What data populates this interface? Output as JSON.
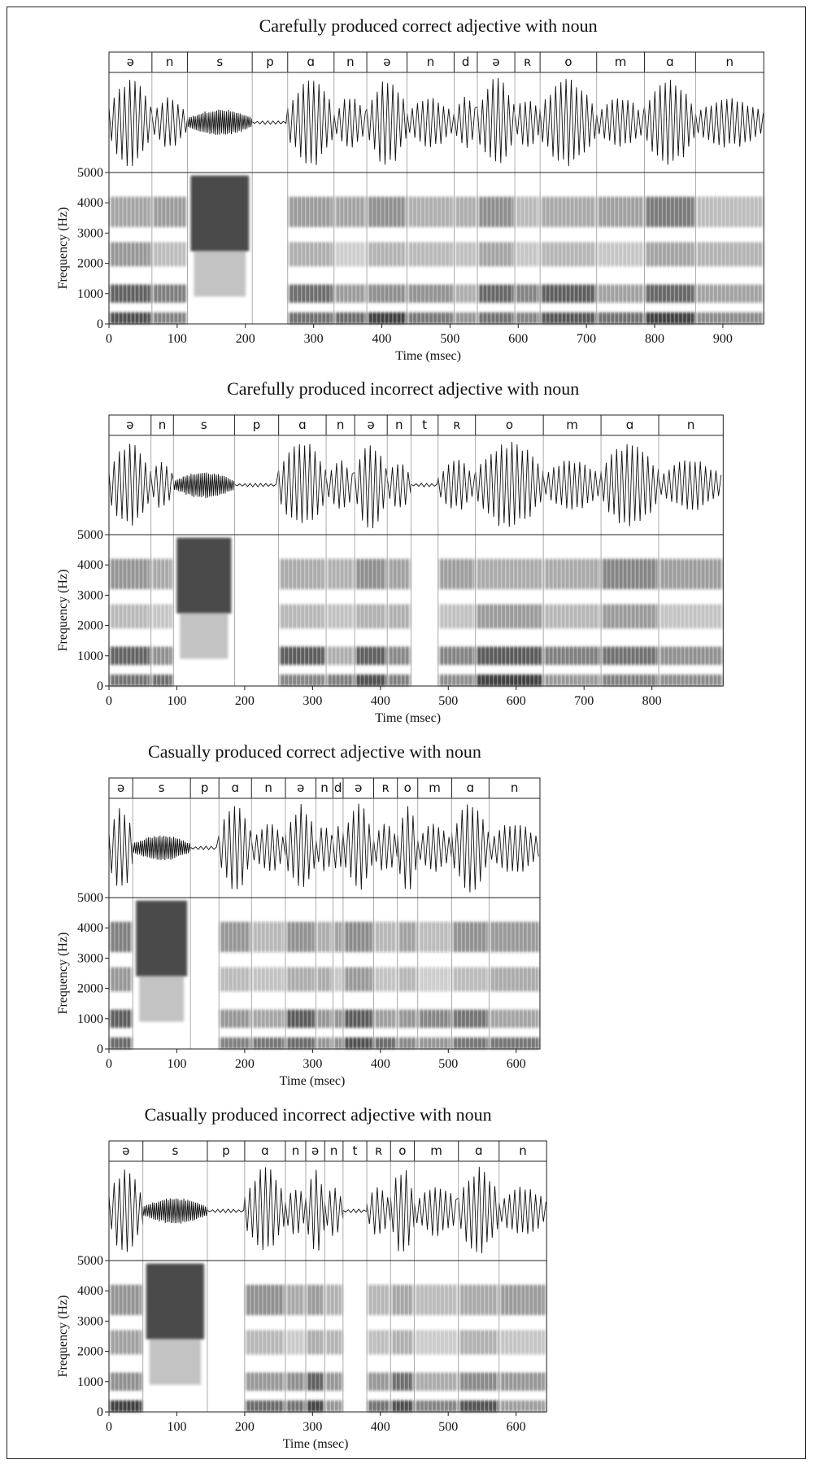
{
  "panels": [
    {
      "title": "Carefully produced correct adjective with noun",
      "xlabel": "Time (msec)",
      "ylabel": "Frequency (Hz)",
      "duration_ms": 960,
      "x_ticks": [
        0,
        100,
        200,
        300,
        400,
        500,
        600,
        700,
        800,
        900
      ],
      "y_ticks": [
        0,
        1000,
        2000,
        3000,
        4000,
        5000
      ],
      "ylim": [
        0,
        5000
      ],
      "segments": [
        {
          "label": "ə",
          "start": 0,
          "end": 63
        },
        {
          "label": "n",
          "start": 63,
          "end": 115
        },
        {
          "label": "s",
          "start": 115,
          "end": 210
        },
        {
          "label": "p",
          "start": 210,
          "end": 262
        },
        {
          "label": "ɑ",
          "start": 262,
          "end": 330
        },
        {
          "label": "n",
          "start": 330,
          "end": 378
        },
        {
          "label": "ə",
          "start": 378,
          "end": 437
        },
        {
          "label": "n",
          "start": 437,
          "end": 506
        },
        {
          "label": "d",
          "start": 506,
          "end": 540
        },
        {
          "label": "ə",
          "start": 540,
          "end": 595
        },
        {
          "label": "ʀ",
          "start": 595,
          "end": 632
        },
        {
          "label": "o",
          "start": 632,
          "end": 715
        },
        {
          "label": "m",
          "start": 715,
          "end": 785
        },
        {
          "label": "ɑ",
          "start": 785,
          "end": 860
        },
        {
          "label": "n",
          "start": 860,
          "end": 960
        }
      ]
    },
    {
      "title": "Carefully produced incorrect adjective with noun",
      "xlabel": "Time (msec)",
      "ylabel": "Frequency (Hz)",
      "duration_ms": 905,
      "x_ticks": [
        0,
        100,
        200,
        300,
        400,
        500,
        600,
        700,
        800
      ],
      "y_ticks": [
        0,
        1000,
        2000,
        3000,
        4000,
        5000
      ],
      "ylim": [
        0,
        5000
      ],
      "segments": [
        {
          "label": "ə",
          "start": 0,
          "end": 62
        },
        {
          "label": "n",
          "start": 62,
          "end": 95
        },
        {
          "label": "s",
          "start": 95,
          "end": 185
        },
        {
          "label": "p",
          "start": 185,
          "end": 250
        },
        {
          "label": "ɑ",
          "start": 250,
          "end": 320
        },
        {
          "label": "n",
          "start": 320,
          "end": 362
        },
        {
          "label": "ə",
          "start": 362,
          "end": 410
        },
        {
          "label": "n",
          "start": 410,
          "end": 445
        },
        {
          "label": "t",
          "start": 445,
          "end": 485
        },
        {
          "label": "ʀ",
          "start": 485,
          "end": 540
        },
        {
          "label": "o",
          "start": 540,
          "end": 640
        },
        {
          "label": "m",
          "start": 640,
          "end": 725
        },
        {
          "label": "ɑ",
          "start": 725,
          "end": 810
        },
        {
          "label": "n",
          "start": 810,
          "end": 905
        }
      ]
    },
    {
      "title": "Casually produced correct adjective with noun",
      "xlabel": "Time (msec)",
      "ylabel": "Frequency (Hz)",
      "duration_ms": 635,
      "x_ticks": [
        0,
        100,
        200,
        300,
        400,
        500,
        600
      ],
      "y_ticks": [
        0,
        1000,
        2000,
        3000,
        4000,
        5000
      ],
      "ylim": [
        0,
        5000
      ],
      "segments": [
        {
          "label": "ə",
          "start": 0,
          "end": 35
        },
        {
          "label": "s",
          "start": 35,
          "end": 120
        },
        {
          "label": "p",
          "start": 120,
          "end": 162
        },
        {
          "label": "ɑ",
          "start": 162,
          "end": 210
        },
        {
          "label": "n",
          "start": 210,
          "end": 260
        },
        {
          "label": "ə",
          "start": 260,
          "end": 305
        },
        {
          "label": "n",
          "start": 305,
          "end": 330
        },
        {
          "label": "d",
          "start": 330,
          "end": 345
        },
        {
          "label": "ə",
          "start": 345,
          "end": 390
        },
        {
          "label": "ʀ",
          "start": 390,
          "end": 425
        },
        {
          "label": "o",
          "start": 425,
          "end": 455
        },
        {
          "label": "m",
          "start": 455,
          "end": 505
        },
        {
          "label": "ɑ",
          "start": 505,
          "end": 560
        },
        {
          "label": "n",
          "start": 560,
          "end": 635
        }
      ]
    },
    {
      "title": "Casually produced incorrect adjective with noun",
      "xlabel": "Time (msec)",
      "ylabel": "Frequency (Hz)",
      "duration_ms": 645,
      "x_ticks": [
        0,
        100,
        200,
        300,
        400,
        500,
        600
      ],
      "y_ticks": [
        0,
        1000,
        2000,
        3000,
        4000,
        5000
      ],
      "ylim": [
        0,
        5000
      ],
      "segments": [
        {
          "label": "ə",
          "start": 0,
          "end": 50
        },
        {
          "label": "s",
          "start": 50,
          "end": 145
        },
        {
          "label": "p",
          "start": 145,
          "end": 200
        },
        {
          "label": "ɑ",
          "start": 200,
          "end": 260
        },
        {
          "label": "n",
          "start": 260,
          "end": 290
        },
        {
          "label": "ə",
          "start": 290,
          "end": 318
        },
        {
          "label": "n",
          "start": 318,
          "end": 345
        },
        {
          "label": "t",
          "start": 345,
          "end": 380
        },
        {
          "label": "ʀ",
          "start": 380,
          "end": 415
        },
        {
          "label": "o",
          "start": 415,
          "end": 450
        },
        {
          "label": "m",
          "start": 450,
          "end": 515
        },
        {
          "label": "ɑ",
          "start": 515,
          "end": 575
        },
        {
          "label": "n",
          "start": 575,
          "end": 645
        }
      ]
    }
  ]
}
